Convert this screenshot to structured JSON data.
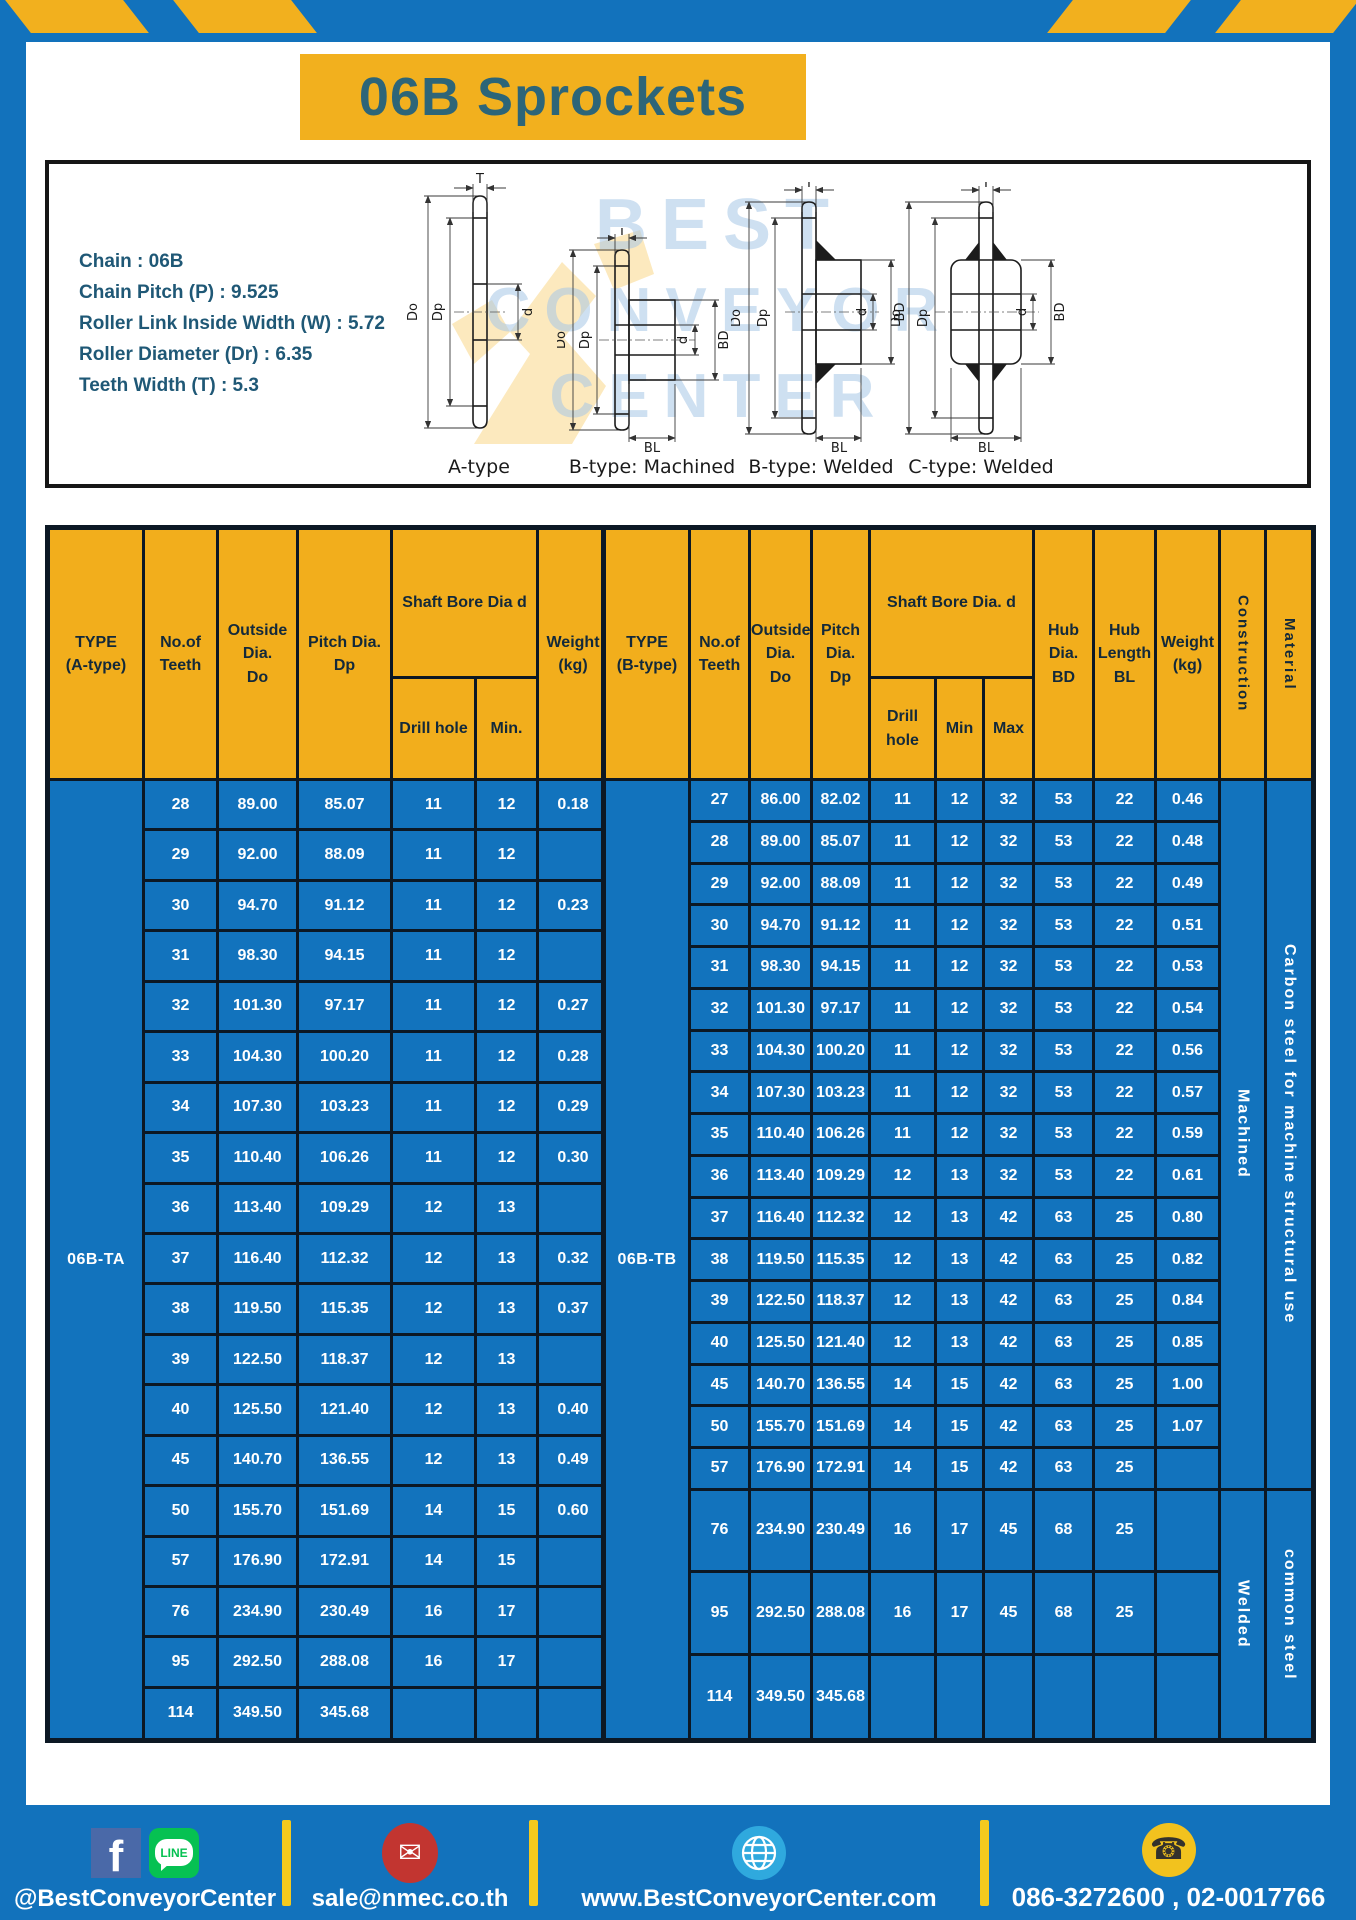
{
  "colors": {
    "blue": "#1272BC",
    "yellow": "#F2B01E",
    "header_yellow": "#F2AE1C",
    "title_text": "#2D6578",
    "header_text": "#13293A"
  },
  "header": {
    "title": "06B Sprockets"
  },
  "specs": {
    "lines": [
      "Chain : 06B",
      "Chain Pitch (P) : 9.525",
      "Roller Link Inside Width (W) : 5.72",
      "Roller Diameter (Dr) : 6.35",
      "Teeth Width (T) : 5.3"
    ]
  },
  "diagram": {
    "captions": [
      "A-type",
      "B-type: Machined",
      "B-type: Welded",
      "C-type: Welded"
    ],
    "dim_labels": {
      "t": "T",
      "do": "Do",
      "dp": "Dp",
      "d": "d",
      "bd": "BD",
      "bl": "BL"
    },
    "watermark": [
      "BEST",
      "CONVEYOR",
      "CENTER"
    ]
  },
  "left_table": {
    "type_label": "06B-TA",
    "headers": {
      "type": "TYPE\n(A-type)",
      "teeth": "No.of\nTeeth",
      "outside": "Outside\nDia.\nDo",
      "pitch": "Pitch Dia.\nDp",
      "shaft": "Shaft Bore Dia d",
      "drill": "Drill hole",
      "min": "Min.",
      "weight": "Weight\n(kg)"
    },
    "rows": [
      [
        "28",
        "89.00",
        "85.07",
        "11",
        "12",
        "0.18"
      ],
      [
        "29",
        "92.00",
        "88.09",
        "11",
        "12",
        ""
      ],
      [
        "30",
        "94.70",
        "91.12",
        "11",
        "12",
        "0.23"
      ],
      [
        "31",
        "98.30",
        "94.15",
        "11",
        "12",
        ""
      ],
      [
        "32",
        "101.30",
        "97.17",
        "11",
        "12",
        "0.27"
      ],
      [
        "33",
        "104.30",
        "100.20",
        "11",
        "12",
        "0.28"
      ],
      [
        "34",
        "107.30",
        "103.23",
        "11",
        "12",
        "0.29"
      ],
      [
        "35",
        "110.40",
        "106.26",
        "11",
        "12",
        "0.30"
      ],
      [
        "36",
        "113.40",
        "109.29",
        "12",
        "13",
        ""
      ],
      [
        "37",
        "116.40",
        "112.32",
        "12",
        "13",
        "0.32"
      ],
      [
        "38",
        "119.50",
        "115.35",
        "12",
        "13",
        "0.37"
      ],
      [
        "39",
        "122.50",
        "118.37",
        "12",
        "13",
        ""
      ],
      [
        "40",
        "125.50",
        "121.40",
        "12",
        "13",
        "0.40"
      ],
      [
        "45",
        "140.70",
        "136.55",
        "12",
        "13",
        "0.49"
      ],
      [
        "50",
        "155.70",
        "151.69",
        "14",
        "15",
        "0.60"
      ],
      [
        "57",
        "176.90",
        "172.91",
        "14",
        "15",
        ""
      ],
      [
        "76",
        "234.90",
        "230.49",
        "16",
        "17",
        ""
      ],
      [
        "95",
        "292.50",
        "288.08",
        "16",
        "17",
        ""
      ],
      [
        "114",
        "349.50",
        "345.68",
        "",
        "",
        ""
      ]
    ]
  },
  "right_table": {
    "type_label": "06B-TB",
    "headers": {
      "type": "TYPE\n(B-type)",
      "teeth": "No.of\nTeeth",
      "outside": "Outside\nDia.\nDo",
      "pitch": "Pitch\nDia.\nDp",
      "shaft": "Shaft Bore Dia. d",
      "drill": "Drill hole",
      "min": "Min",
      "max": "Max",
      "hub_dia": "Hub\nDia.\nBD",
      "hub_len": "Hub\nLength\nBL",
      "weight": "Weight\n(kg)",
      "construction": "Construction",
      "material": "Material"
    },
    "rows": [
      [
        "27",
        "86.00",
        "82.02",
        "11",
        "12",
        "32",
        "53",
        "22",
        "0.46"
      ],
      [
        "28",
        "89.00",
        "85.07",
        "11",
        "12",
        "32",
        "53",
        "22",
        "0.48"
      ],
      [
        "29",
        "92.00",
        "88.09",
        "11",
        "12",
        "32",
        "53",
        "22",
        "0.49"
      ],
      [
        "30",
        "94.70",
        "91.12",
        "11",
        "12",
        "32",
        "53",
        "22",
        "0.51"
      ],
      [
        "31",
        "98.30",
        "94.15",
        "11",
        "12",
        "32",
        "53",
        "22",
        "0.53"
      ],
      [
        "32",
        "101.30",
        "97.17",
        "11",
        "12",
        "32",
        "53",
        "22",
        "0.54"
      ],
      [
        "33",
        "104.30",
        "100.20",
        "11",
        "12",
        "32",
        "53",
        "22",
        "0.56"
      ],
      [
        "34",
        "107.30",
        "103.23",
        "11",
        "12",
        "32",
        "53",
        "22",
        "0.57"
      ],
      [
        "35",
        "110.40",
        "106.26",
        "11",
        "12",
        "32",
        "53",
        "22",
        "0.59"
      ],
      [
        "36",
        "113.40",
        "109.29",
        "12",
        "13",
        "32",
        "53",
        "22",
        "0.61"
      ],
      [
        "37",
        "116.40",
        "112.32",
        "12",
        "13",
        "42",
        "63",
        "25",
        "0.80"
      ],
      [
        "38",
        "119.50",
        "115.35",
        "12",
        "13",
        "42",
        "63",
        "25",
        "0.82"
      ],
      [
        "39",
        "122.50",
        "118.37",
        "12",
        "13",
        "42",
        "63",
        "25",
        "0.84"
      ],
      [
        "40",
        "125.50",
        "121.40",
        "12",
        "13",
        "42",
        "63",
        "25",
        "0.85"
      ],
      [
        "45",
        "140.70",
        "136.55",
        "14",
        "15",
        "42",
        "63",
        "25",
        "1.00"
      ],
      [
        "50",
        "155.70",
        "151.69",
        "14",
        "15",
        "42",
        "63",
        "25",
        "1.07"
      ],
      [
        "57",
        "176.90",
        "172.91",
        "14",
        "15",
        "42",
        "63",
        "25",
        ""
      ],
      [
        "76",
        "234.90",
        "230.49",
        "16",
        "17",
        "45",
        "68",
        "25",
        ""
      ],
      [
        "95",
        "292.50",
        "288.08",
        "16",
        "17",
        "45",
        "68",
        "25",
        ""
      ],
      [
        "114",
        "349.50",
        "345.68",
        "",
        "",
        "",
        "",
        "",
        ""
      ]
    ],
    "construction": [
      {
        "label": "Machined",
        "span": 17
      },
      {
        "label": "Welded",
        "span": 3
      }
    ],
    "material": [
      {
        "label": "Carbon steel for machine structural use",
        "span": 17
      },
      {
        "label": "common steel",
        "span": 3
      }
    ]
  },
  "footer": {
    "social_handle": "@BestConveyorCenter",
    "facebook_glyph": "f",
    "line_glyph": "LINE",
    "email": "sale@nmec.co.th",
    "website": "www.BestConveyorCenter.com",
    "phone": "086-3272600 , 02-0017766",
    "mail_glyph": "✉",
    "phone_glyph": "☎"
  }
}
